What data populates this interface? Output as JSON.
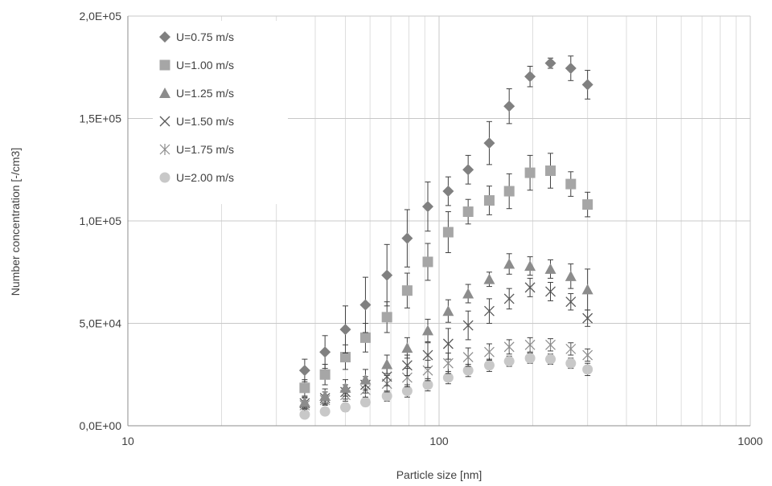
{
  "chart_data": {
    "type": "scatter",
    "title": "",
    "xlabel": "Particle size [nm]",
    "ylabel": "Number concentration [-/cm3]",
    "x_scale": "log",
    "xlim": [
      10,
      1000
    ],
    "ylim": [
      0,
      200000
    ],
    "x_ticks": [
      10,
      100,
      1000
    ],
    "x_tick_labels": [
      "10",
      "100",
      "1000"
    ],
    "y_ticks": [
      0,
      50000,
      100000,
      150000,
      200000
    ],
    "y_tick_labels": [
      "0,0E+00",
      "5,0E+04",
      "1,0E+05",
      "1,5E+05",
      "2,0E+05"
    ],
    "grid": true,
    "legend_position": "top-left",
    "x": [
      37,
      43,
      50,
      58,
      68,
      79,
      92,
      107,
      124,
      145,
      168,
      196,
      228,
      265,
      300
    ],
    "series": [
      {
        "name": "U=0.75 m/s",
        "marker": "diamond",
        "color": "#808080",
        "values": [
          27000,
          36000,
          47000,
          59000,
          73500,
          91500,
          107000,
          114500,
          125000,
          138000,
          156000,
          170500,
          177000,
          174500,
          166500
        ],
        "errors": [
          5500,
          8000,
          11500,
          13500,
          15000,
          14000,
          12000,
          7000,
          7000,
          10500,
          8500,
          5000,
          2500,
          6000,
          7000
        ]
      },
      {
        "name": "U=1.00 m/s",
        "marker": "square",
        "color": "#a6a6a6",
        "values": [
          18500,
          25000,
          33500,
          43000,
          53000,
          66000,
          80000,
          94500,
          104500,
          110000,
          114500,
          123500,
          124500,
          118000,
          108000
        ],
        "errors": [
          4000,
          5000,
          6000,
          7000,
          7500,
          8500,
          9000,
          10000,
          6000,
          7000,
          8500,
          8500,
          8500,
          6000,
          6000
        ]
      },
      {
        "name": "U=1.25 m/s",
        "marker": "triangle",
        "color": "#8c8c8c",
        "values": [
          11500,
          14500,
          18500,
          22500,
          30000,
          38000,
          46500,
          56000,
          64500,
          71500,
          79000,
          78000,
          76500,
          73000,
          66500
        ],
        "errors": [
          2500,
          3500,
          4000,
          5000,
          4500,
          5000,
          5500,
          5500,
          4500,
          3500,
          5000,
          4500,
          4500,
          6000,
          10000
        ]
      },
      {
        "name": "U=1.50 m/s",
        "marker": "x",
        "color": "#595959",
        "values": [
          11000,
          13500,
          16500,
          20000,
          24000,
          29500,
          34500,
          40000,
          49000,
          56000,
          62000,
          67500,
          65500,
          60500,
          52500
        ],
        "errors": [
          2500,
          3000,
          3500,
          4000,
          4500,
          5000,
          6000,
          7500,
          7000,
          6000,
          5000,
          4500,
          4500,
          4000,
          4000
        ]
      },
      {
        "name": "U=1.75 m/s",
        "marker": "asterisk",
        "color": "#8c8c8c",
        "values": [
          10000,
          12500,
          15000,
          17500,
          20500,
          23500,
          27000,
          30500,
          33500,
          36000,
          38500,
          39500,
          39500,
          37500,
          34500
        ],
        "errors": [
          2000,
          2500,
          3000,
          3500,
          4000,
          4500,
          5000,
          5000,
          4500,
          4000,
          3500,
          3500,
          3000,
          3000,
          3000
        ]
      },
      {
        "name": "U=2.00 m/s",
        "marker": "circle",
        "color": "#c8c8c8",
        "values": [
          5500,
          7000,
          9000,
          11500,
          14500,
          17000,
          20000,
          23500,
          27000,
          29500,
          31500,
          33000,
          32500,
          30500,
          27500
        ],
        "errors": [
          1500,
          1500,
          2000,
          2000,
          2500,
          3000,
          3000,
          3000,
          3000,
          3000,
          2500,
          2500,
          2500,
          2500,
          3000
        ]
      }
    ]
  }
}
